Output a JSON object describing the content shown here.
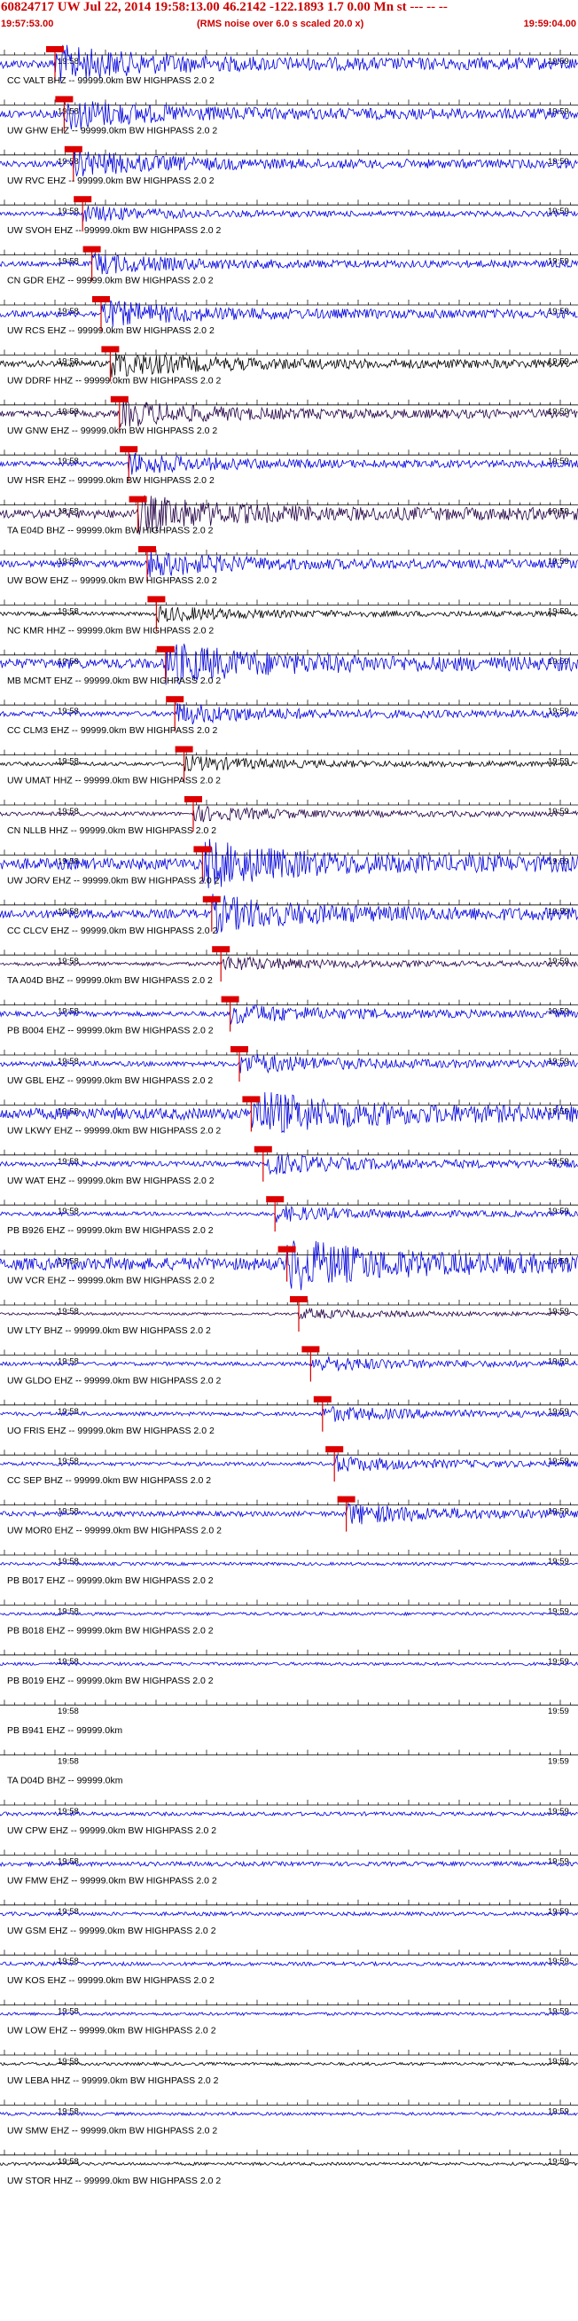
{
  "header": {
    "title": "60824717 UW Jul 22, 2014 19:58:13.00   46.2142 -122.1893  1.7 0.00 Mn st --- -- --",
    "start_time": "19:57:53.00",
    "rms_note": "(RMS noise over 6.0 s scaled 20.0 x)",
    "end_time": "19:59:04.00"
  },
  "time_labels": {
    "start": "19:58",
    "end": "19:59"
  },
  "colors": {
    "blue": "#0000dd",
    "dark": "#220044",
    "black": "#000000",
    "pick": "#dd0000",
    "header": "#cc0000"
  },
  "traces": [
    {
      "label": "CC VALT BHZ -- 99999.0km BW  HIGHPASS  2.0  2",
      "color": "blue",
      "amp": 14,
      "pick": "P"
    },
    {
      "label": "UW GHW EHZ -- 99999.0km BW  HIGHPASS  2.0  2",
      "color": "blue",
      "amp": 12,
      "pick": "P"
    },
    {
      "label": "UW RVC EHZ -- 99999.0km BW  HIGHPASS  2.0  2",
      "color": "blue",
      "amp": 10,
      "pick": "P"
    },
    {
      "label": "UW SVOH EHZ -- 99999.0km BW  HIGHPASS  2.0  2",
      "color": "blue",
      "amp": 6,
      "pick": "P"
    },
    {
      "label": "CN GDR EHZ -- 99999.0km BW  HIGHPASS  2.0  2",
      "color": "blue",
      "amp": 8,
      "pick": "P"
    },
    {
      "label": "UW RCS EHZ -- 99999.0km BW  HIGHPASS  2.0  2",
      "color": "blue",
      "amp": 10,
      "pick": "P"
    },
    {
      "label": "UW DDRF HHZ -- 99999.0km BW  HIGHPASS  2.0  2",
      "color": "black",
      "amp": 10,
      "pick": "P"
    },
    {
      "label": "UW GNW EHZ -- 99999.0km BW  HIGHPASS  2.0  2",
      "color": "dark",
      "amp": 10,
      "pick": "P"
    },
    {
      "label": "UW HSR EHZ -- 99999.0km BW  HIGHPASS  2.0  2",
      "color": "blue",
      "amp": 8,
      "pick": "P"
    },
    {
      "label": "TA E04D BHZ -- 99999.0km BW  HIGHPASS  2.0  2",
      "color": "dark",
      "amp": 14,
      "pick": "P"
    },
    {
      "label": "UW BOW EHZ -- 99999.0km BW  HIGHPASS  2.0  2",
      "color": "blue",
      "amp": 10,
      "pick": "P"
    },
    {
      "label": "NC KMR HHZ -- 99999.0km BW  HIGHPASS  2.0  2",
      "color": "black",
      "amp": 6,
      "pick": "P"
    },
    {
      "label": "MB MCMT EHZ -- 99999.0km BW  HIGHPASS  2.0  2",
      "color": "blue",
      "amp": 16,
      "pick": "P"
    },
    {
      "label": "CC CLM3 EHZ -- 99999.0km BW  HIGHPASS  2.0  2",
      "color": "blue",
      "amp": 8,
      "pick": "P"
    },
    {
      "label": "UW UMAT HHZ -- 99999.0km BW  HIGHPASS  2.0  2",
      "color": "black",
      "amp": 6,
      "pick": "P"
    },
    {
      "label": "CN NLLB HHZ -- 99999.0km BW  HIGHPASS  2.0  2",
      "color": "dark",
      "amp": 6,
      "pick": "P"
    },
    {
      "label": "UW JORV EHZ -- 99999.0km BW  HIGHPASS  2.0  2",
      "color": "blue",
      "amp": 18,
      "pick": "P"
    },
    {
      "label": "CC CLCV EHZ -- 99999.0km BW  HIGHPASS  2.0  2",
      "color": "blue",
      "amp": 14,
      "pick": "P"
    },
    {
      "label": "TA A04D BHZ -- 99999.0km BW  HIGHPASS  2.0  2",
      "color": "dark",
      "amp": 6,
      "pick": "P"
    },
    {
      "label": "PB B004 EHZ -- 99999.0km BW  HIGHPASS  2.0  2",
      "color": "blue",
      "amp": 8,
      "pick": "P"
    },
    {
      "label": "UW GBL EHZ -- 99999.0km BW  HIGHPASS  2.0  2",
      "color": "blue",
      "amp": 8,
      "pick": "P"
    },
    {
      "label": "UW LKWY EHZ -- 99999.0km BW  HIGHPASS  2.0  2",
      "color": "blue",
      "amp": 18,
      "pick": "P"
    },
    {
      "label": "UW WAT EHZ -- 99999.0km BW  HIGHPASS  2.0  2",
      "color": "blue",
      "amp": 8,
      "pick": "P"
    },
    {
      "label": "PB B926 EHZ -- 99999.0km BW  HIGHPASS  2.0  2",
      "color": "blue",
      "amp": 6,
      "pick": "P"
    },
    {
      "label": "UW VCR EHZ -- 99999.0km BW  HIGHPASS  2.0  2",
      "color": "blue",
      "amp": 20,
      "pick": "P"
    },
    {
      "label": "UW LTY BHZ -- 99999.0km BW  HIGHPASS  2.0  2",
      "color": "dark",
      "amp": 4,
      "pick": "P"
    },
    {
      "label": "UW GLDO EHZ -- 99999.0km BW  HIGHPASS  2.0  2",
      "color": "blue",
      "amp": 6,
      "pick": "P"
    },
    {
      "label": "UO FRIS EHZ -- 99999.0km BW  HIGHPASS  2.0  2",
      "color": "blue",
      "amp": 6,
      "pick": "P"
    },
    {
      "label": "CC SEP BHZ -- 99999.0km BW  HIGHPASS  2.0  2",
      "color": "blue",
      "amp": 6,
      "pick": "P"
    },
    {
      "label": "UW MOR0 EHZ -- 99999.0km BW  HIGHPASS  2.0  2",
      "color": "blue",
      "amp": 8,
      "pick": "P"
    },
    {
      "label": "PB B017 EHZ -- 99999.0km BW  HIGHPASS  2.0  2",
      "color": "blue",
      "amp": 5,
      "pick": ""
    },
    {
      "label": "PB B018 EHZ -- 99999.0km BW  HIGHPASS  2.0  2",
      "color": "blue",
      "amp": 5,
      "pick": ""
    },
    {
      "label": "PB B019 EHZ -- 99999.0km BW  HIGHPASS  2.0  2",
      "color": "blue",
      "amp": 5,
      "pick": ""
    },
    {
      "label": "PB B941 EHZ -- 99999.0km",
      "color": "blue",
      "amp": 0,
      "pick": ""
    },
    {
      "label": "TA D04D BHZ -- 99999.0km",
      "color": "blue",
      "amp": 0,
      "pick": ""
    },
    {
      "label": "UW CPW EHZ -- 99999.0km BW  HIGHPASS  2.0  2",
      "color": "blue",
      "amp": 6,
      "pick": ""
    },
    {
      "label": "UW FMW EHZ -- 99999.0km BW  HIGHPASS  2.0  2",
      "color": "blue",
      "amp": 7,
      "pick": ""
    },
    {
      "label": "UW GSM EHZ -- 99999.0km BW  HIGHPASS  2.0  2",
      "color": "blue",
      "amp": 6,
      "pick": ""
    },
    {
      "label": "UW KOS EHZ -- 99999.0km BW  HIGHPASS  2.0  2",
      "color": "blue",
      "amp": 6,
      "pick": ""
    },
    {
      "label": "UW LOW EHZ -- 99999.0km BW  HIGHPASS  2.0  2",
      "color": "blue",
      "amp": 5,
      "pick": ""
    },
    {
      "label": "UW LEBA HHZ -- 99999.0km BW  HIGHPASS  2.0  2",
      "color": "black",
      "amp": 5,
      "pick": ""
    },
    {
      "label": "UW SMW EHZ -- 99999.0km BW  HIGHPASS  2.0  2",
      "color": "blue",
      "amp": 5,
      "pick": ""
    },
    {
      "label": "UW STOR HHZ -- 99999.0km BW  HIGHPASS  2.0  2",
      "color": "black",
      "amp": 5,
      "pick": ""
    }
  ]
}
